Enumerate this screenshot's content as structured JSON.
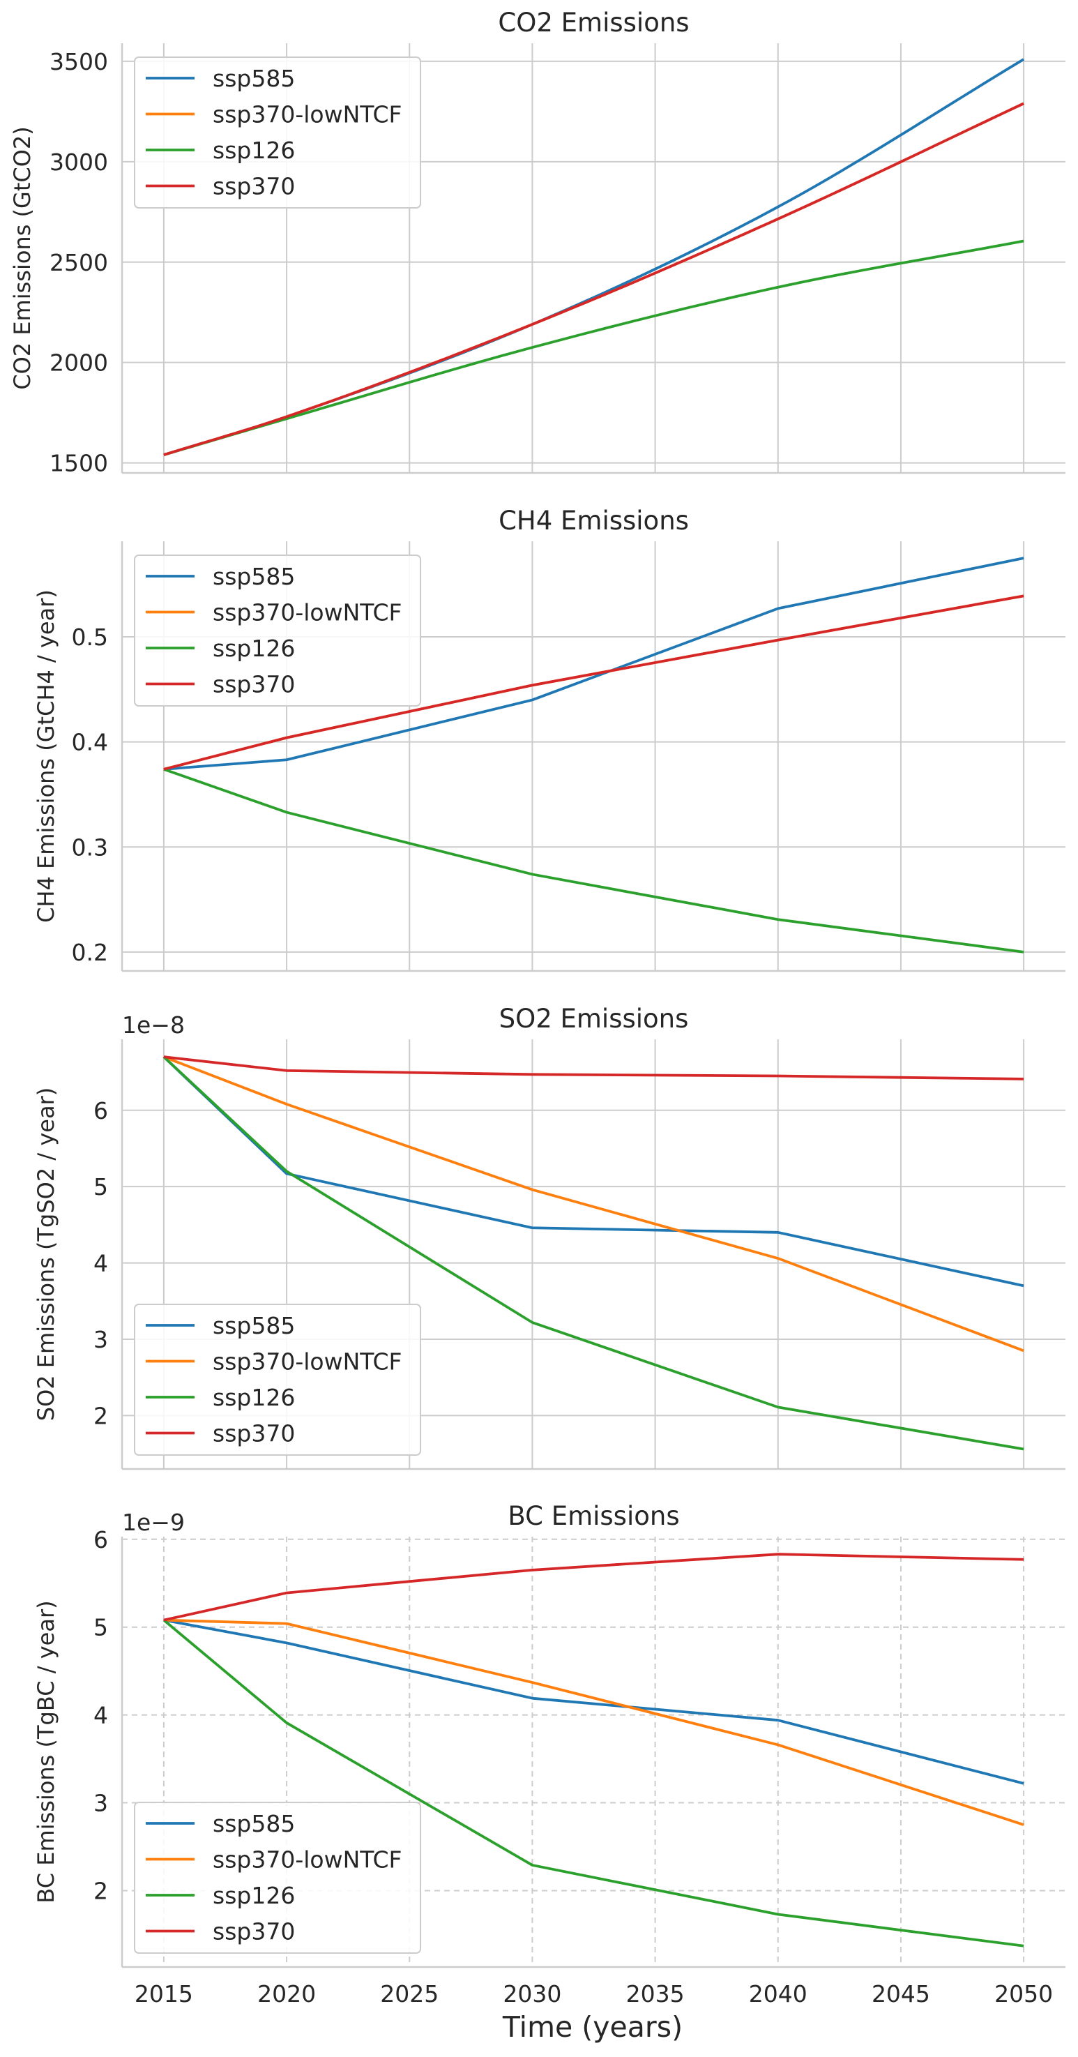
{
  "figure": {
    "xlabel": "Time (years)"
  },
  "colors": {
    "ssp585": "#1f77b4",
    "ssp370-lowNTCF": "#ff7f0e",
    "ssp126": "#2ca02c",
    "ssp370": "#d62728"
  },
  "chart_data": [
    {
      "type": "line",
      "title": "CO2 Emissions",
      "xlabel": "",
      "ylabel": "CO2 Emissions (GtCO2)",
      "offset_label": "",
      "x": [
        2015,
        2020,
        2030,
        2040,
        2050
      ],
      "xlim": [
        2013.3,
        2051.7
      ],
      "xticks": [
        2015,
        2020,
        2025,
        2030,
        2035,
        2040,
        2045,
        2050
      ],
      "ylim": [
        1450,
        3590
      ],
      "yticks": [
        1500,
        2000,
        2500,
        3000,
        3500
      ],
      "ytick_labels": [
        "1500",
        "2000",
        "2500",
        "3000",
        "3500"
      ],
      "grid": "solid",
      "legend": "upper-left",
      "series": [
        {
          "name": "ssp585",
          "values": [
            1540,
            1730,
            2190,
            2775,
            3510
          ],
          "smooth": true
        },
        {
          "name": "ssp370-lowNTCF",
          "values": [
            1540,
            1730,
            2190,
            2715,
            3290
          ],
          "smooth": true
        },
        {
          "name": "ssp126",
          "values": [
            1540,
            1720,
            2075,
            2375,
            2605
          ],
          "smooth": true
        },
        {
          "name": "ssp370",
          "values": [
            1540,
            1730,
            2190,
            2715,
            3290
          ],
          "smooth": true
        }
      ]
    },
    {
      "type": "line",
      "title": "CH4 Emissions",
      "xlabel": "",
      "ylabel": "CH4 Emissions (GtCH4 / year)",
      "offset_label": "",
      "x": [
        2015,
        2020,
        2030,
        2040,
        2050
      ],
      "xlim": [
        2013.3,
        2051.7
      ],
      "xticks": [
        2015,
        2020,
        2025,
        2030,
        2035,
        2040,
        2045,
        2050
      ],
      "ylim": [
        0.182,
        0.591
      ],
      "yticks": [
        0.2,
        0.3,
        0.4,
        0.5
      ],
      "ytick_labels": [
        "0.2",
        "0.3",
        "0.4",
        "0.5"
      ],
      "grid": "solid",
      "legend": "upper-left",
      "series": [
        {
          "name": "ssp585",
          "values": [
            0.374,
            0.383,
            0.44,
            0.527,
            0.575
          ]
        },
        {
          "name": "ssp370-lowNTCF",
          "values": [
            0.374,
            0.404,
            0.454,
            0.497,
            0.539
          ]
        },
        {
          "name": "ssp126",
          "values": [
            0.374,
            0.333,
            0.274,
            0.231,
            0.2
          ]
        },
        {
          "name": "ssp370",
          "values": [
            0.374,
            0.404,
            0.454,
            0.497,
            0.539
          ]
        }
      ]
    },
    {
      "type": "line",
      "title": "SO2 Emissions",
      "xlabel": "",
      "ylabel": "SO2 Emissions (TgSO2 / year)",
      "offset_label": "1e−8",
      "x": [
        2015,
        2020,
        2030,
        2040,
        2050
      ],
      "xlim": [
        2013.3,
        2051.7
      ],
      "xticks": [
        2015,
        2020,
        2025,
        2030,
        2035,
        2040,
        2045,
        2050
      ],
      "ylim": [
        1.3,
        6.93
      ],
      "yticks": [
        2,
        3,
        4,
        5,
        6
      ],
      "ytick_labels": [
        "2",
        "3",
        "4",
        "5",
        "6"
      ],
      "grid": "solid",
      "legend": "lower-left",
      "series": [
        {
          "name": "ssp585",
          "values": [
            6.7,
            5.17,
            4.46,
            4.4,
            3.7
          ]
        },
        {
          "name": "ssp370-lowNTCF",
          "values": [
            6.7,
            6.08,
            4.96,
            4.06,
            2.85
          ]
        },
        {
          "name": "ssp126",
          "values": [
            6.7,
            5.2,
            3.22,
            2.11,
            1.56
          ]
        },
        {
          "name": "ssp370",
          "values": [
            6.7,
            6.52,
            6.47,
            6.45,
            6.41
          ]
        }
      ]
    },
    {
      "type": "line",
      "title": "BC Emissions",
      "xlabel": "Time (years)",
      "ylabel": "BC Emissions (TgBC / year)",
      "offset_label": "1e−9",
      "x": [
        2015,
        2020,
        2030,
        2040,
        2050
      ],
      "xlim": [
        2013.3,
        2051.7
      ],
      "xticks": [
        2015,
        2020,
        2025,
        2030,
        2035,
        2040,
        2045,
        2050
      ],
      "ylim": [
        1.13,
        6.03
      ],
      "yticks": [
        2,
        3,
        4,
        5,
        6
      ],
      "ytick_labels": [
        "2",
        "3",
        "4",
        "5",
        "6"
      ],
      "grid": "dashed",
      "legend": "lower-left",
      "series": [
        {
          "name": "ssp585",
          "values": [
            5.08,
            4.82,
            4.19,
            3.94,
            3.22
          ]
        },
        {
          "name": "ssp370-lowNTCF",
          "values": [
            5.08,
            5.04,
            4.37,
            3.66,
            2.75
          ]
        },
        {
          "name": "ssp126",
          "values": [
            5.08,
            3.91,
            2.29,
            1.73,
            1.37
          ]
        },
        {
          "name": "ssp370",
          "values": [
            5.08,
            5.39,
            5.65,
            5.83,
            5.77
          ]
        }
      ]
    }
  ]
}
